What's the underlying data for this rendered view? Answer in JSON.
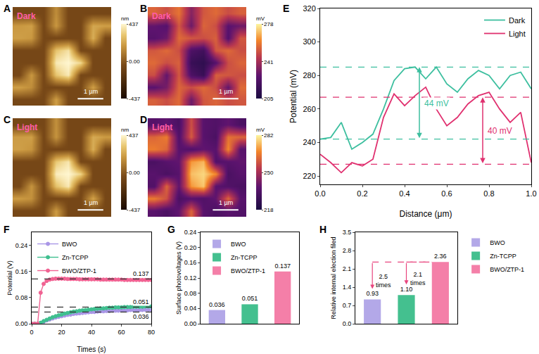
{
  "chart_data": [
    {
      "panel": "A",
      "type": "heatmap",
      "label": "Dark",
      "scale_bar": "1 µm",
      "color": "copper",
      "colorbar_title": "nm",
      "zlim": [
        -437,
        437
      ],
      "zticks": [
        437,
        {
          "value": 0,
          "label": "0.00"
        },
        -437
      ],
      "tick_labels": false,
      "cells": [
        [
          -60,
          -60,
          -60,
          150,
          -60,
          -60,
          -60,
          -60
        ],
        [
          180,
          200,
          -60,
          180,
          -60,
          -60,
          220,
          200
        ],
        [
          200,
          180,
          -60,
          -60,
          -60,
          -60,
          240,
          -60
        ],
        [
          -60,
          -60,
          -60,
          300,
          380,
          -60,
          -60,
          -60
        ],
        [
          -60,
          -60,
          -60,
          400,
          437,
          350,
          -60,
          -60
        ],
        [
          -60,
          180,
          -60,
          300,
          400,
          -60,
          -60,
          -60
        ],
        [
          200,
          150,
          -60,
          -60,
          -60,
          -60,
          200,
          -60
        ],
        [
          -60,
          -60,
          -60,
          200,
          -60,
          -60,
          -60,
          -60
        ]
      ]
    },
    {
      "panel": "B",
      "type": "heatmap",
      "label": "Dark",
      "scale_bar": "1 µm",
      "color": "plasma",
      "colorbar_title": "mV",
      "zlim": [
        205,
        278
      ],
      "zticks": [
        278,
        241,
        205
      ],
      "tick_labels": false,
      "cells": [
        [
          255,
          250,
          258,
          235,
          252,
          256,
          250,
          254
        ],
        [
          228,
          225,
          252,
          230,
          255,
          250,
          226,
          230
        ],
        [
          225,
          230,
          256,
          252,
          250,
          254,
          224,
          252
        ],
        [
          252,
          256,
          250,
          222,
          218,
          252,
          256,
          250
        ],
        [
          256,
          250,
          254,
          215,
          212,
          225,
          250,
          255
        ],
        [
          250,
          228,
          252,
          222,
          215,
          254,
          252,
          250
        ],
        [
          226,
          232,
          255,
          250,
          256,
          250,
          228,
          256
        ],
        [
          254,
          250,
          256,
          230,
          252,
          255,
          250,
          252
        ]
      ]
    },
    {
      "panel": "C",
      "type": "heatmap",
      "label": "Light",
      "scale_bar": "1 µm",
      "color": "copper",
      "colorbar_title": "nm",
      "zlim": [
        -437,
        437
      ],
      "zticks": [
        437,
        {
          "value": 0,
          "label": "0.00"
        },
        -437
      ],
      "tick_labels": false,
      "cells": [
        [
          -60,
          -60,
          -60,
          160,
          -60,
          -60,
          -60,
          -60
        ],
        [
          190,
          200,
          -60,
          170,
          -60,
          -60,
          230,
          190
        ],
        [
          200,
          170,
          -60,
          -60,
          -60,
          -60,
          240,
          -60
        ],
        [
          -60,
          -60,
          -60,
          310,
          390,
          -60,
          -60,
          -60
        ],
        [
          -60,
          -60,
          -60,
          410,
          437,
          340,
          -60,
          -60
        ],
        [
          -60,
          170,
          -60,
          290,
          400,
          -60,
          -60,
          -60
        ],
        [
          190,
          160,
          -60,
          -60,
          -60,
          -60,
          210,
          -60
        ],
        [
          -60,
          -60,
          -60,
          190,
          -60,
          -60,
          -60,
          -60
        ]
      ]
    },
    {
      "panel": "D",
      "type": "heatmap",
      "label": "Light",
      "scale_bar": "1 µm",
      "color": "plasma",
      "colorbar_title": "mV",
      "zlim": [
        218,
        282
      ],
      "zticks": [
        282,
        250,
        218
      ],
      "tick_labels": false,
      "cells": [
        [
          235,
          238,
          232,
          258,
          236,
          234,
          238,
          232
        ],
        [
          262,
          266,
          234,
          260,
          236,
          232,
          264,
          262
        ],
        [
          266,
          262,
          236,
          234,
          238,
          236,
          268,
          236
        ],
        [
          232,
          236,
          238,
          270,
          274,
          234,
          236,
          238
        ],
        [
          236,
          232,
          236,
          275,
          278,
          268,
          232,
          236
        ],
        [
          234,
          262,
          238,
          270,
          276,
          236,
          234,
          232
        ],
        [
          266,
          258,
          232,
          236,
          234,
          238,
          262,
          236
        ],
        [
          236,
          232,
          238,
          262,
          236,
          232,
          236,
          234
        ]
      ]
    },
    {
      "panel": "E",
      "type": "line",
      "x_label": "Distance (μm)",
      "y_label": "Potential (mV)",
      "x": [
        0,
        0.05,
        0.1,
        0.15,
        0.2,
        0.25,
        0.3,
        0.35,
        0.4,
        0.45,
        0.5,
        0.55,
        0.6,
        0.65,
        0.7,
        0.75,
        0.8,
        0.85,
        0.9,
        0.95,
        1
      ],
      "series": [
        {
          "name": "Dark",
          "color": "#3dbf9f",
          "values": [
            242,
            243,
            252,
            236,
            240,
            245,
            260,
            277,
            284,
            285,
            278,
            285,
            275,
            270,
            278,
            283,
            280,
            272,
            280,
            282,
            272
          ]
        },
        {
          "name": "Light",
          "color": "#e0306f",
          "values": [
            233,
            228,
            222,
            228,
            226,
            230,
            255,
            269,
            262,
            268,
            273,
            260,
            250,
            255,
            263,
            268,
            270,
            260,
            252,
            258,
            228
          ]
        }
      ],
      "xlim": [
        0,
        1
      ],
      "xticks": [
        {
          "value": 0,
          "label": "0.0"
        },
        0.2,
        0.4,
        0.6,
        0.8,
        {
          "value": 1,
          "label": "1.0"
        }
      ],
      "ylim": [
        215,
        320
      ],
      "yticks": [
        220,
        240,
        260,
        280,
        300,
        320
      ],
      "reference_lines": [
        {
          "value": 285,
          "color": "#3dbf9f"
        },
        {
          "value": 242,
          "color": "#3dbf9f"
        },
        {
          "value": 267,
          "color": "#e0306f"
        },
        {
          "value": 227,
          "color": "#e0306f"
        }
      ],
      "spans": [
        {
          "x": 0.47,
          "from": 242,
          "to": 285,
          "label": "44 mV",
          "color": "#3dbf9f"
        },
        {
          "x": 0.77,
          "from": 227,
          "to": 267,
          "label": "40 mV",
          "color": "#e0306f"
        }
      ],
      "legend": "upper right",
      "grid": false
    },
    {
      "panel": "F",
      "type": "line",
      "marker": "circle",
      "x_label": "Times (s)",
      "y_label": "Potential (V)",
      "x": [
        0,
        2,
        4,
        6,
        8,
        10,
        12,
        14,
        16,
        18,
        20,
        22,
        24,
        26,
        28,
        30,
        32,
        34,
        36,
        38,
        40,
        42,
        44,
        46,
        48,
        50,
        52,
        54,
        56,
        58,
        60,
        62,
        64,
        66,
        68,
        70,
        72,
        74,
        76,
        78,
        80
      ],
      "series": [
        {
          "name": "BWO",
          "color": "#a996e6",
          "values": [
            0,
            0,
            0,
            0.002,
            0.006,
            0.01,
            0.013,
            0.016,
            0.019,
            0.021,
            0.023,
            0.025,
            0.027,
            0.028,
            0.03,
            0.031,
            0.032,
            0.033,
            0.034,
            0.035,
            0.036,
            0.036,
            0.037,
            0.038,
            0.038,
            0.039,
            0.039,
            0.04,
            0.04,
            0.04,
            0.041,
            0.041,
            0.041,
            0.042,
            0.042,
            0.042,
            0.042,
            0.042,
            0.043,
            0.043,
            0.043
          ]
        },
        {
          "name": "Zn-TCPP",
          "color": "#3fbf8f",
          "values": [
            0,
            0,
            0,
            0.003,
            0.008,
            0.012,
            0.016,
            0.02,
            0.023,
            0.026,
            0.028,
            0.031,
            0.033,
            0.035,
            0.037,
            0.038,
            0.04,
            0.041,
            0.042,
            0.043,
            0.044,
            0.045,
            0.046,
            0.047,
            0.047,
            0.048,
            0.049,
            0.049,
            0.05,
            0.05,
            0.05,
            0.051,
            0.051,
            0.051,
            0.052,
            0.052,
            0.052,
            0.052,
            0.053,
            0.053,
            0.053
          ]
        },
        {
          "name": "BWO/ZTP-1",
          "color": "#f06292",
          "values": [
            0,
            0,
            0,
            0.095,
            0.122,
            0.131,
            0.135,
            0.137,
            0.138,
            0.138,
            0.138,
            0.138,
            0.137,
            0.137,
            0.137,
            0.137,
            0.136,
            0.136,
            0.136,
            0.136,
            0.136,
            0.136,
            0.136,
            0.135,
            0.135,
            0.135,
            0.135,
            0.135,
            0.135,
            0.135,
            0.135,
            0.134,
            0.134,
            0.134,
            0.134,
            0.134,
            0.134,
            0.134,
            0.134,
            0.134,
            0.134
          ]
        }
      ],
      "xlim": [
        0,
        80
      ],
      "xticks": [
        0,
        20,
        40,
        60,
        80
      ],
      "ylim": [
        0,
        0.28
      ],
      "yticks": [
        {
          "value": 0,
          "label": "0.00"
        },
        0.08,
        0.16,
        0.24
      ],
      "reference_lines": [
        0.137,
        0.051,
        0.036
      ],
      "legend": "upper left",
      "grid": false
    },
    {
      "panel": "G",
      "type": "bar",
      "y_label": "Surface photovoltages (V)",
      "categories": [
        "BWO",
        "Zn-TCPP",
        "BWO/ZTP-1"
      ],
      "values": [
        0.036,
        0.051,
        0.137
      ],
      "colors": [
        "#b3a8e8",
        "#44c08f",
        "#f47fa8"
      ],
      "ylim": [
        0,
        0.24
      ],
      "yticks": [
        {
          "value": 0,
          "label": "0.00"
        },
        0.04,
        0.08,
        0.12,
        0.16,
        {
          "value": 0.2,
          "label": "0.20"
        },
        0.24
      ],
      "data_labels": true,
      "tick_labels": "y",
      "legend": "upper left",
      "grid": false
    },
    {
      "panel": "H",
      "type": "bar",
      "y_label": "Relative internal election filed",
      "categories": [
        "BWO",
        "Zn-TCPP",
        "BWO/ZTP-1"
      ],
      "values": [
        0.93,
        1.1,
        2.36
      ],
      "value_labels": [
        "0.93",
        "1.10",
        "2.36"
      ],
      "colors": [
        "#b3a8e8",
        "#44c08f",
        "#f47fa8"
      ],
      "ylim": [
        0,
        3.5
      ],
      "yticks": [
        {
          "value": 0,
          "label": "0.0"
        },
        0.7,
        1.4,
        2.1,
        2.8,
        3.5
      ],
      "comparisons": [
        {
          "from": 0,
          "to": 2,
          "label": "2.5 times"
        },
        {
          "from": 1,
          "to": 2,
          "label": "2.1 times"
        }
      ],
      "data_labels": true,
      "tick_labels": "y",
      "legend": "right",
      "grid": false
    }
  ]
}
